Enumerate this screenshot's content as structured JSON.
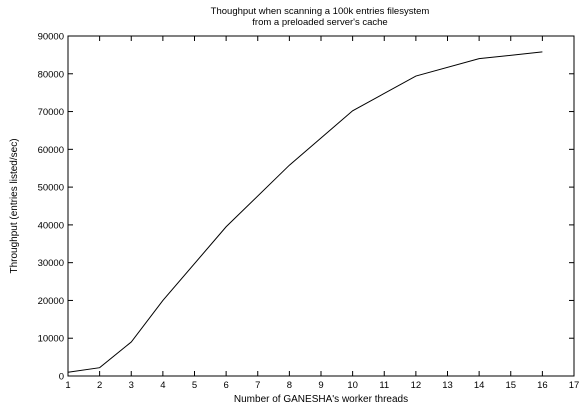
{
  "chart_data": {
    "type": "line",
    "title_lines": [
      "Thoughput when scanning a 100k entries filesystem",
      "from a preloaded server's cache"
    ],
    "xlabel": "Number of GANESHA's worker threads",
    "ylabel": "Throughput (entries listed/sec)",
    "xlim": [
      1,
      17
    ],
    "ylim": [
      0,
      90000
    ],
    "xticks": [
      1,
      2,
      3,
      4,
      5,
      6,
      7,
      8,
      9,
      10,
      11,
      12,
      13,
      14,
      15,
      16,
      17
    ],
    "yticks": [
      0,
      10000,
      20000,
      30000,
      40000,
      50000,
      60000,
      70000,
      80000,
      90000
    ],
    "grid": false,
    "legend": "none",
    "series": [
      {
        "x": [
          1,
          2,
          3,
          4,
          6,
          8,
          10,
          12,
          14,
          16
        ],
        "y": [
          1000,
          2200,
          9000,
          20000,
          39500,
          55800,
          70200,
          79400,
          84000,
          85800
        ]
      }
    ],
    "colors": {
      "line": "#000000",
      "axes": "#000000"
    }
  }
}
